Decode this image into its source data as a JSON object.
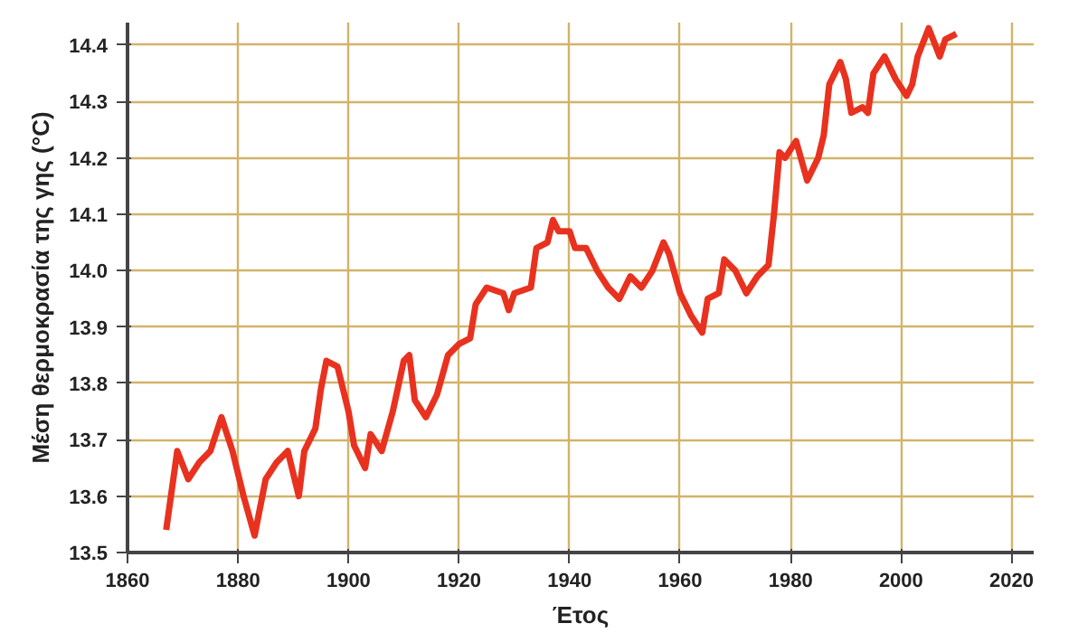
{
  "chart_data": {
    "type": "line",
    "xlabel": "Έτος",
    "ylabel": "Μέση θερμοκρασία της γης (°C)",
    "xlim": [
      1860,
      2024
    ],
    "ylim": [
      13.5,
      14.44
    ],
    "xticks": [
      1860,
      1880,
      1900,
      1920,
      1940,
      1960,
      1980,
      2000,
      2020
    ],
    "yticks": [
      13.5,
      13.6,
      13.7,
      13.8,
      13.9,
      {
        "value": 14.0,
        "label": "14.0"
      },
      14.1,
      14.2,
      14.3,
      14.4
    ],
    "grid": true,
    "line_style": "solid",
    "series": [
      {
        "color": "#e8321f",
        "x": [
          1867,
          1869,
          1871,
          1873,
          1875,
          1877,
          1879,
          1881,
          1883,
          1885,
          1887,
          1889,
          1891,
          1892,
          1894,
          1895,
          1896,
          1898,
          1900,
          1901,
          1903,
          1904,
          1906,
          1908,
          1910,
          1911,
          1912,
          1914,
          1916,
          1918,
          1920,
          1922,
          1923,
          1925,
          1928,
          1929,
          1930,
          1933,
          1934,
          1936,
          1937,
          1938,
          1940,
          1941,
          1943,
          1945,
          1947,
          1949,
          1951,
          1953,
          1955,
          1957,
          1958,
          1960,
          1962,
          1964,
          1965,
          1967,
          1968,
          1970,
          1972,
          1974,
          1976,
          1977,
          1978,
          1979,
          1981,
          1983,
          1985,
          1986,
          1987,
          1989,
          1990,
          1991,
          1993,
          1994,
          1995,
          1997,
          1999,
          2001,
          2002,
          2003,
          2005,
          2007,
          2008,
          2010
        ],
        "values": [
          13.54,
          13.68,
          13.63,
          13.66,
          13.68,
          13.74,
          13.68,
          13.6,
          13.53,
          13.63,
          13.66,
          13.68,
          13.6,
          13.68,
          13.72,
          13.79,
          13.84,
          13.83,
          13.75,
          13.69,
          13.65,
          13.71,
          13.68,
          13.75,
          13.84,
          13.85,
          13.77,
          13.74,
          13.78,
          13.85,
          13.87,
          13.88,
          13.94,
          13.97,
          13.96,
          13.93,
          13.96,
          13.97,
          14.04,
          14.05,
          14.09,
          14.07,
          14.07,
          14.04,
          14.04,
          14.0,
          13.97,
          13.95,
          13.99,
          13.97,
          14.0,
          14.05,
          14.03,
          13.96,
          13.92,
          13.89,
          13.95,
          13.96,
          14.02,
          14.0,
          13.96,
          13.99,
          14.01,
          14.1,
          14.21,
          14.2,
          14.23,
          14.16,
          14.2,
          14.24,
          14.33,
          14.37,
          14.34,
          14.28,
          14.29,
          14.28,
          14.35,
          14.38,
          14.34,
          14.31,
          14.33,
          14.38,
          14.43,
          14.38,
          14.41,
          14.42
        ]
      }
    ]
  }
}
